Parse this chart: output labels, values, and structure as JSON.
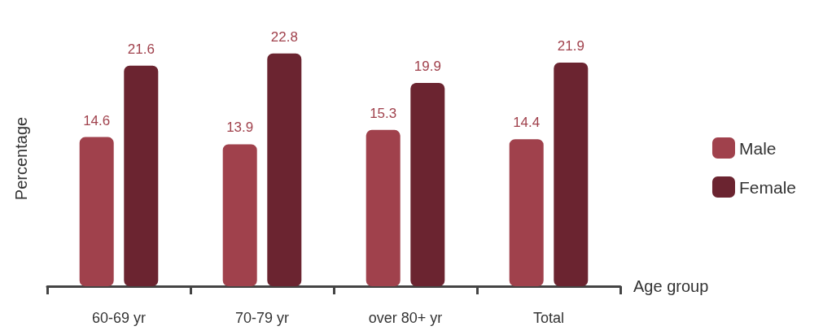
{
  "chart_data": {
    "type": "bar",
    "xlabel": "Age group",
    "ylabel": "Percentage",
    "categories": [
      "60-69 yr",
      "70-79 yr",
      "over 80+ yr",
      "Total"
    ],
    "series": [
      {
        "name": "Male",
        "color": "#a0414c",
        "values": [
          14.6,
          13.9,
          15.3,
          14.4
        ]
      },
      {
        "name": "Female",
        "color": "#6b2430",
        "values": [
          21.6,
          22.8,
          19.9,
          21.9
        ]
      }
    ],
    "data_labels": true,
    "legend": "right",
    "grid": false
  }
}
